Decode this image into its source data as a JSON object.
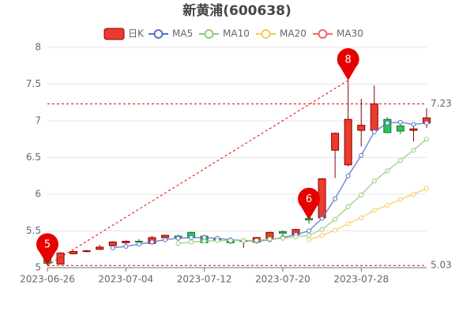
{
  "chart_data": {
    "type": "candlestick",
    "title": "新黄浦(600638)",
    "categories": [
      "2023-06-26",
      null,
      null,
      null,
      null,
      null,
      "2023-07-04",
      null,
      null,
      null,
      null,
      null,
      "2023-07-12",
      null,
      null,
      null,
      null,
      null,
      "2023-07-20",
      null,
      null,
      null,
      null,
      null,
      "2023-07-28",
      null,
      null,
      null,
      null,
      null
    ],
    "candles": {
      "name": "日K",
      "up_color": "#eb3b2f",
      "up_border": "#8a0000",
      "down_color": "#2fc25b",
      "down_border": "#0c7a30",
      "open": [
        5.25,
        5.05,
        5.19,
        5.22,
        5.25,
        5.3,
        5.34,
        5.36,
        5.33,
        5.41,
        5.43,
        5.48,
        5.43,
        5.39,
        5.36,
        5.36,
        5.35,
        5.4,
        5.49,
        5.45,
        5.67,
        5.68,
        6.6,
        6.4,
        6.87,
        6.87,
        7.02,
        6.93,
        6.87,
        6.97
      ],
      "close": [
        5.06,
        5.2,
        5.22,
        5.23,
        5.28,
        5.35,
        5.36,
        5.35,
        5.41,
        5.44,
        5.41,
        5.41,
        5.34,
        5.37,
        5.34,
        5.37,
        5.41,
        5.48,
        5.47,
        5.52,
        5.65,
        6.21,
        6.83,
        7.02,
        6.94,
        7.23,
        6.84,
        6.86,
        6.89,
        7.04
      ],
      "low": [
        5.03,
        5.04,
        5.18,
        5.21,
        5.24,
        5.28,
        5.32,
        5.31,
        5.31,
        5.4,
        5.39,
        5.4,
        5.33,
        5.34,
        5.32,
        5.27,
        5.34,
        5.38,
        5.42,
        5.43,
        5.6,
        5.66,
        6.22,
        6.38,
        6.65,
        6.82,
        6.83,
        6.82,
        6.72,
        6.9
      ],
      "high": [
        5.3,
        5.21,
        5.23,
        5.24,
        5.31,
        5.36,
        5.37,
        5.39,
        5.43,
        5.45,
        5.45,
        5.49,
        5.45,
        5.41,
        5.37,
        5.39,
        5.42,
        5.49,
        5.51,
        5.53,
        5.68,
        6.22,
        6.84,
        7.55,
        7.3,
        7.48,
        7.05,
        7.0,
        6.97,
        7.17
      ]
    },
    "series": [
      {
        "name": "MA5",
        "color": "#5470c6",
        "values": [
          null,
          null,
          null,
          null,
          null,
          5.27,
          5.29,
          5.32,
          5.35,
          5.38,
          5.4,
          5.41,
          5.41,
          5.4,
          5.38,
          5.37,
          5.36,
          5.38,
          5.41,
          5.45,
          5.5,
          5.67,
          5.94,
          6.25,
          6.53,
          6.85,
          6.97,
          6.98,
          6.95,
          6.97
        ]
      },
      {
        "name": "MA10",
        "color": "#91cc75",
        "values": [
          null,
          null,
          null,
          null,
          null,
          null,
          null,
          null,
          null,
          null,
          5.33,
          5.35,
          5.36,
          5.37,
          5.37,
          5.37,
          5.37,
          5.39,
          5.4,
          5.42,
          5.44,
          5.52,
          5.66,
          5.83,
          5.99,
          6.18,
          6.32,
          6.46,
          6.6,
          6.75
        ]
      },
      {
        "name": "MA20",
        "color": "#fac858",
        "values": [
          null,
          null,
          null,
          null,
          null,
          null,
          null,
          null,
          null,
          null,
          null,
          null,
          null,
          null,
          null,
          null,
          null,
          null,
          null,
          null,
          5.38,
          5.44,
          5.51,
          5.6,
          5.68,
          5.78,
          5.85,
          5.93,
          6.0,
          6.08
        ]
      },
      {
        "name": "MA30",
        "color": "#ee6666",
        "values": [
          null,
          null,
          null,
          null,
          null,
          null,
          null,
          null,
          null,
          null,
          null,
          null,
          null,
          null,
          null,
          null,
          null,
          null,
          null,
          null,
          null,
          null,
          null,
          null,
          null,
          null,
          null,
          null,
          null,
          null
        ]
      }
    ],
    "mark_points": [
      {
        "label": "5",
        "value": 5.03
      },
      {
        "label": "6",
        "value": 5.65
      },
      {
        "label": "8",
        "value": 7.55
      }
    ],
    "mark_lines": [
      7.23,
      5.03
    ],
    "mark_color": "#e60000",
    "ylim": [
      5,
      8
    ],
    "yticks": [
      5,
      5.5,
      6,
      6.5,
      7,
      7.5,
      8
    ],
    "grid": true
  }
}
